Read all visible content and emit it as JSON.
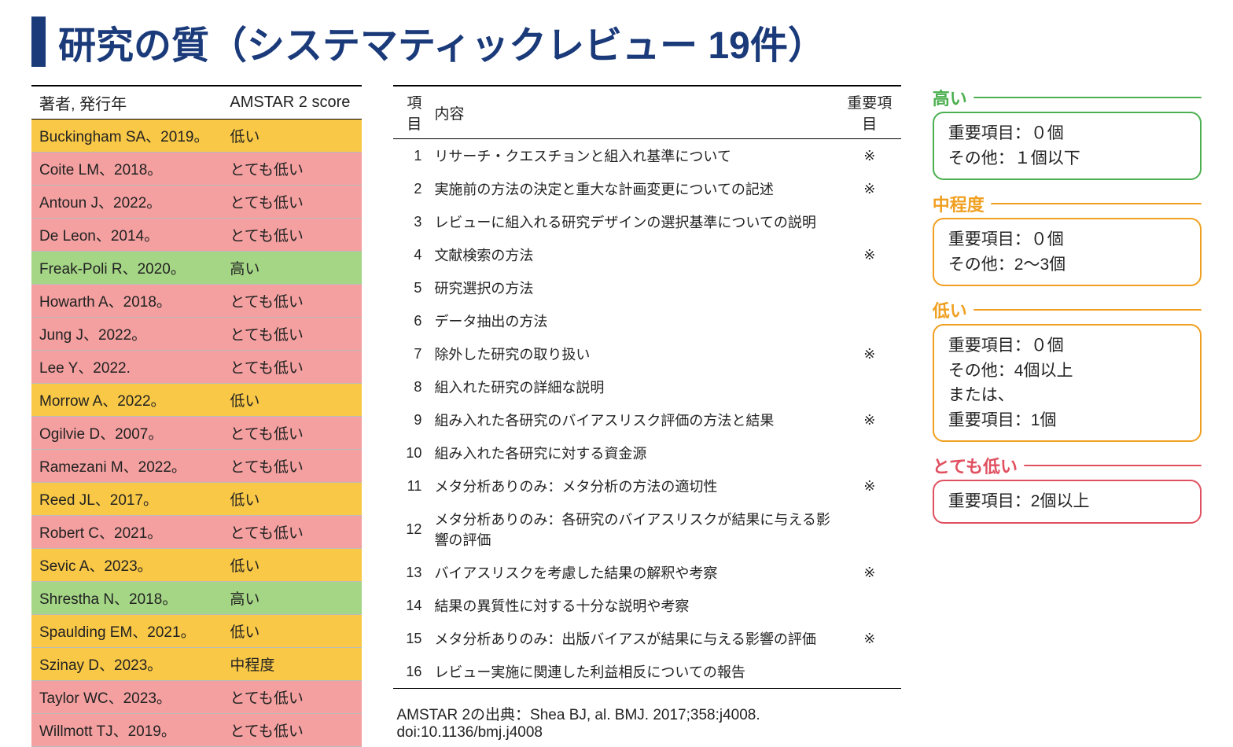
{
  "colors": {
    "titleBar": "#1a3a7a",
    "titleText": "#1a3a7a",
    "row_high": "#a5d686",
    "row_moderate": "#f9c846",
    "row_low": "#f9c846",
    "row_verylow": "#f4a0a0",
    "legend_high": "#4caf50",
    "legend_moderate": "#f0a020",
    "legend_low": "#f0a020",
    "legend_verylow": "#e05060"
  },
  "title": "研究の質（システマティックレビュー 19件）",
  "scoresTable": {
    "headers": {
      "author": "著者, 発行年",
      "score": "AMSTAR 2 score"
    },
    "rows": [
      {
        "author": "Buckingham SA、2019。",
        "score": "低い",
        "level": "low"
      },
      {
        "author": "Coite LM、2018。",
        "score": "とても低い",
        "level": "verylow"
      },
      {
        "author": "Antoun J、2022。",
        "score": "とても低い",
        "level": "verylow"
      },
      {
        "author": "De Leon、2014。",
        "score": "とても低い",
        "level": "verylow"
      },
      {
        "author": "Freak-Poli R、2020。",
        "score": "高い",
        "level": "high"
      },
      {
        "author": "Howarth A、2018。",
        "score": "とても低い",
        "level": "verylow"
      },
      {
        "author": "Jung J、2022。",
        "score": "とても低い",
        "level": "verylow"
      },
      {
        "author": "Lee Y、2022.",
        "score": "とても低い",
        "level": "verylow"
      },
      {
        "author": "Morrow A、2022。",
        "score": "低い",
        "level": "low"
      },
      {
        "author": "Ogilvie D、2007。",
        "score": "とても低い",
        "level": "verylow"
      },
      {
        "author": "Ramezani M、2022。",
        "score": "とても低い",
        "level": "verylow"
      },
      {
        "author": "Reed JL、2017。",
        "score": "低い",
        "level": "low"
      },
      {
        "author": "Robert C、2021。",
        "score": "とても低い",
        "level": "verylow"
      },
      {
        "author": "Sevic A、2023。",
        "score": "低い",
        "level": "low"
      },
      {
        "author": "Shrestha N、2018。",
        "score": "高い",
        "level": "high"
      },
      {
        "author": "Spaulding EM、2021。",
        "score": "低い",
        "level": "low"
      },
      {
        "author": "Szinay D、2023。",
        "score": "中程度",
        "level": "moderate"
      },
      {
        "author": "Taylor WC、2023。",
        "score": "とても低い",
        "level": "verylow"
      },
      {
        "author": "Willmott TJ、2019。",
        "score": "とても低い",
        "level": "verylow"
      }
    ]
  },
  "checklist": {
    "headers": {
      "num": "項目",
      "desc": "内容",
      "mark": "重要項目"
    },
    "markSymbol": "※",
    "items": [
      {
        "n": 1,
        "desc": "リサーチ・クエスチョンと組入れ基準について",
        "critical": true
      },
      {
        "n": 2,
        "desc": "実施前の方法の決定と重大な計画変更についての記述",
        "critical": true
      },
      {
        "n": 3,
        "desc": "レビューに組入れる研究デザインの選択基準についての説明",
        "critical": false
      },
      {
        "n": 4,
        "desc": "文献検索の方法",
        "critical": true
      },
      {
        "n": 5,
        "desc": "研究選択の方法",
        "critical": false
      },
      {
        "n": 6,
        "desc": "データ抽出の方法",
        "critical": false
      },
      {
        "n": 7,
        "desc": "除外した研究の取り扱い",
        "critical": true
      },
      {
        "n": 8,
        "desc": "組入れた研究の詳細な説明",
        "critical": false
      },
      {
        "n": 9,
        "desc": "組み入れた各研究のバイアスリスク評価の方法と結果",
        "critical": true
      },
      {
        "n": 10,
        "desc": "組み入れた各研究に対する資金源",
        "critical": false
      },
      {
        "n": 11,
        "desc": "メタ分析ありのみ：メタ分析の方法の適切性",
        "critical": true
      },
      {
        "n": 12,
        "desc": "メタ分析ありのみ：各研究のバイアスリスクが結果に与える影響の評価",
        "critical": false
      },
      {
        "n": 13,
        "desc": "バイアスリスクを考慮した結果の解釈や考察",
        "critical": true
      },
      {
        "n": 14,
        "desc": "結果の異質性に対する十分な説明や考察",
        "critical": false
      },
      {
        "n": 15,
        "desc": "メタ分析ありのみ：出版バイアスが結果に与える影響の評価",
        "critical": true
      },
      {
        "n": 16,
        "desc": "レビュー実施に関連した利益相反についての報告",
        "critical": false
      }
    ],
    "citation": "AMSTAR 2の出典：Shea BJ, al. BMJ. 2017;358:j4008. doi:10.1136/bmj.j4008"
  },
  "legend": [
    {
      "label": "高い",
      "level": "high",
      "lines": [
        "重要項目：０個",
        "その他：１個以下"
      ]
    },
    {
      "label": "中程度",
      "level": "moderate",
      "lines": [
        "重要項目：０個",
        "その他：2～3個"
      ]
    },
    {
      "label": "低い",
      "level": "low",
      "lines": [
        "重要項目：０個",
        "その他：4個以上",
        "または、",
        "重要項目：1個"
      ]
    },
    {
      "label": "とても低い",
      "level": "verylow",
      "lines": [
        "重要項目：2個以上"
      ]
    }
  ]
}
